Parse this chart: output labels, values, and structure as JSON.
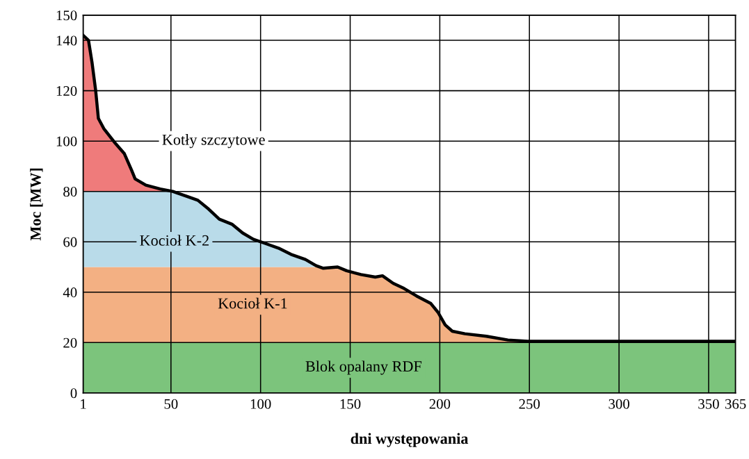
{
  "chart_data": {
    "type": "area",
    "stacked": true,
    "xlabel": "dni występowania",
    "ylabel": "Moc [MW]",
    "x": [
      1,
      4,
      6,
      8,
      9.5,
      12.5,
      18.5,
      24,
      28,
      30,
      36,
      44,
      51,
      59,
      65,
      71,
      77,
      84,
      90,
      96,
      102,
      110,
      117,
      125,
      131,
      135,
      143,
      148,
      156,
      164,
      168,
      174,
      180,
      187,
      195,
      199,
      203,
      207,
      214,
      226,
      238,
      249,
      265,
      365
    ],
    "series": [
      {
        "name": "Blok opalany RDF",
        "color": "#7cc47c",
        "values": [
          20,
          20,
          20,
          20,
          20,
          20,
          20,
          20,
          20,
          20,
          20,
          20,
          20,
          20,
          20,
          20,
          20,
          20,
          20,
          20,
          20,
          20,
          20,
          20,
          20,
          20,
          20,
          20,
          20,
          20,
          20,
          20,
          20,
          20,
          20,
          20,
          20,
          20,
          20,
          20,
          20,
          20,
          20,
          20
        ]
      },
      {
        "name": "Kocioł K-1",
        "color": "#f3b083",
        "values": [
          30,
          30,
          30,
          30,
          30,
          30,
          30,
          30,
          30,
          30,
          30,
          30,
          30,
          30,
          30,
          30,
          30,
          30,
          30,
          30,
          30,
          30,
          30,
          30,
          30,
          29.5,
          30,
          28.5,
          27,
          26,
          26.5,
          23.5,
          21.5,
          18.5,
          15.5,
          12,
          7,
          4.5,
          3.5,
          2.5,
          1,
          0.5,
          0.5,
          0.5
        ]
      },
      {
        "name": "Kocioł K-2",
        "color": "#b9dbe9",
        "values": [
          30,
          30,
          30,
          30,
          30,
          30,
          30,
          30,
          30,
          30,
          30,
          30,
          30,
          28,
          26.5,
          23,
          19,
          17,
          13.5,
          11,
          9.5,
          7.5,
          5,
          3,
          0.5,
          0,
          0,
          0,
          0,
          0,
          0,
          0,
          0,
          0,
          0,
          0,
          0,
          0,
          0,
          0,
          0,
          0,
          0,
          0
        ]
      },
      {
        "name": "Kotły szczytowe",
        "color": "#ef7b7b",
        "values": [
          62,
          60,
          51,
          40,
          29,
          25,
          19.5,
          15,
          8.5,
          5,
          2.5,
          1,
          0,
          0,
          0,
          0,
          0,
          0,
          0,
          0,
          0,
          0,
          0,
          0,
          0,
          0,
          0,
          0,
          0,
          0,
          0,
          0,
          0,
          0,
          0,
          0,
          0,
          0,
          0,
          0,
          0,
          0,
          0,
          0
        ]
      }
    ],
    "xlim": [
      1,
      365
    ],
    "xticks": [
      1,
      50,
      100,
      150,
      200,
      250,
      300,
      350,
      365
    ],
    "ylim": [
      0,
      150
    ],
    "yticks": [
      0,
      20,
      40,
      60,
      80,
      100,
      120,
      140,
      150
    ],
    "grid": true
  }
}
